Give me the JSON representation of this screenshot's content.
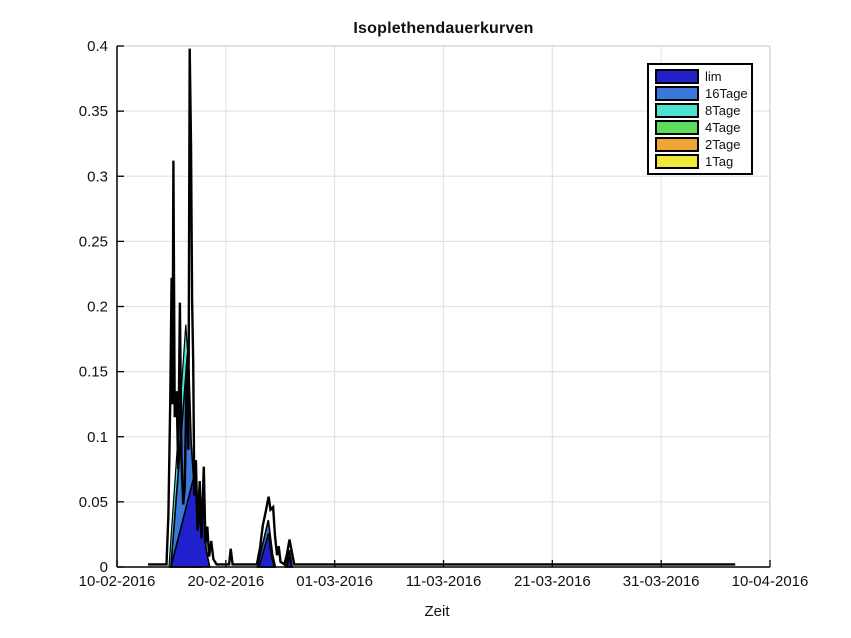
{
  "chart_data": {
    "type": "area",
    "title": "Isoplethendauerkurven",
    "xlabel": "Zeit",
    "x_unit": "days since 10-02-2016",
    "xlim": [
      0,
      60
    ],
    "ylim": [
      0,
      0.4
    ],
    "grid": true,
    "legend_position": "top-right",
    "x_ticks": [
      {
        "day": 0,
        "label": "10-02-2016"
      },
      {
        "day": 10,
        "label": "20-02-2016"
      },
      {
        "day": 20,
        "label": "01-03-2016"
      },
      {
        "day": 30,
        "label": "11-03-2016"
      },
      {
        "day": 40,
        "label": "21-03-2016"
      },
      {
        "day": 50,
        "label": "31-03-2016"
      },
      {
        "day": 60,
        "label": "10-04-2016"
      }
    ],
    "y_ticks": [
      {
        "value": 0,
        "label": "0"
      },
      {
        "value": 0.05,
        "label": "0.05"
      },
      {
        "value": 0.1,
        "label": "0.1"
      },
      {
        "value": 0.15,
        "label": "0.15"
      },
      {
        "value": 0.2,
        "label": "0.2"
      },
      {
        "value": 0.25,
        "label": "0.25"
      },
      {
        "value": 0.3,
        "label": "0.3"
      },
      {
        "value": 0.35,
        "label": "0.35"
      },
      {
        "value": 0.4,
        "label": "0.4"
      }
    ],
    "legend": [
      {
        "label": "lim",
        "color": "#2020cd"
      },
      {
        "label": "16Tage",
        "color": "#3a78dc"
      },
      {
        "label": "8Tage",
        "color": "#4de2d1"
      },
      {
        "label": "4Tage",
        "color": "#5cdc5c"
      },
      {
        "label": "2Tage",
        "color": "#f0a434"
      },
      {
        "label": "1Tag",
        "color": "#eeea3a"
      }
    ],
    "series": [
      {
        "name": "8Tage",
        "color": "#4de2d1",
        "stroke": "#000000",
        "stroke_width": 1.2,
        "filled": true,
        "polygons": [
          [
            [
              4.78,
              0
            ],
            [
              6.32,
              0.186
            ],
            [
              6.5,
              0.164
            ],
            [
              5.0,
              0
            ]
          ]
        ]
      },
      {
        "name": "16Tage",
        "color": "#3a78dc",
        "stroke": "#000000",
        "stroke_width": 1.6,
        "filled": true,
        "polygons": [
          [
            [
              4.95,
              0
            ],
            [
              6.48,
              0.164
            ],
            [
              6.62,
              0.15
            ],
            [
              6.82,
              0.095
            ],
            [
              7.02,
              0.07
            ],
            [
              7.28,
              0.025
            ],
            [
              7.52,
              0
            ]
          ],
          [
            [
              7.5,
              0
            ],
            [
              7.64,
              0.05
            ],
            [
              7.8,
              0
            ]
          ],
          [
            [
              12.9,
              0
            ],
            [
              13.9,
              0.036
            ],
            [
              14.3,
              0.01
            ],
            [
              14.55,
              0
            ]
          ],
          [
            [
              15.5,
              0
            ],
            [
              15.85,
              0.013
            ],
            [
              16.1,
              0
            ]
          ]
        ]
      },
      {
        "name": "lim",
        "color": "#2020cd",
        "stroke": "#000000",
        "stroke_width": 1.6,
        "filled": true,
        "polygons": [
          [
            [
              4.95,
              0
            ],
            [
              7.15,
              0.072
            ],
            [
              7.42,
              0.028
            ],
            [
              7.66,
              0.04
            ],
            [
              7.98,
              0.05
            ],
            [
              8.2,
              0.013
            ],
            [
              8.52,
              0
            ]
          ],
          [
            [
              13.05,
              0
            ],
            [
              13.93,
              0.026
            ],
            [
              14.2,
              0.008
            ],
            [
              14.45,
              0
            ]
          ],
          [
            [
              15.6,
              0
            ],
            [
              15.85,
              0.008
            ],
            [
              16.05,
              0
            ]
          ]
        ]
      },
      {
        "name": "envelope",
        "color": "none",
        "stroke": "#000000",
        "stroke_width": 2.4,
        "filled": false,
        "polygons": [
          [
            [
              2.85,
              0.002
            ],
            [
              4.55,
              0.002
            ],
            [
              4.72,
              0.04
            ],
            [
              4.9,
              0.13
            ],
            [
              5.02,
              0.222
            ],
            [
              5.1,
              0.125
            ],
            [
              5.18,
              0.312
            ],
            [
              5.3,
              0.115
            ],
            [
              5.48,
              0.135
            ],
            [
              5.62,
              0.075
            ],
            [
              5.78,
              0.203
            ],
            [
              5.92,
              0.085
            ],
            [
              6.08,
              0.048
            ],
            [
              6.22,
              0.06
            ],
            [
              6.42,
              0.155
            ],
            [
              6.56,
              0.09
            ],
            [
              6.68,
              0.398
            ],
            [
              6.8,
              0.325
            ],
            [
              6.9,
              0.205
            ],
            [
              7.0,
              0.158
            ],
            [
              7.1,
              0.055
            ],
            [
              7.25,
              0.082
            ],
            [
              7.4,
              0.028
            ],
            [
              7.6,
              0.066
            ],
            [
              7.76,
              0.022
            ],
            [
              7.98,
              0.077
            ],
            [
              8.12,
              0.018
            ],
            [
              8.3,
              0.031
            ],
            [
              8.46,
              0.008
            ],
            [
              8.66,
              0.02
            ],
            [
              8.86,
              0.006
            ],
            [
              9.15,
              0.002
            ],
            [
              10.3,
              0.002
            ],
            [
              10.45,
              0.014
            ],
            [
              10.62,
              0.002
            ],
            [
              12.85,
              0.002
            ],
            [
              13.15,
              0.015
            ],
            [
              13.4,
              0.032
            ],
            [
              13.65,
              0.042
            ],
            [
              13.93,
              0.054
            ],
            [
              14.1,
              0.044
            ],
            [
              14.34,
              0.046
            ],
            [
              14.52,
              0.024
            ],
            [
              14.7,
              0.009
            ],
            [
              14.86,
              0.016
            ],
            [
              15.02,
              0.004
            ],
            [
              15.38,
              0.002
            ],
            [
              15.62,
              0.01
            ],
            [
              15.85,
              0.021
            ],
            [
              16.08,
              0.011
            ],
            [
              16.28,
              0.002
            ],
            [
              56.8,
              0.002
            ]
          ]
        ]
      }
    ],
    "colors": {
      "grid": "#dfe5e5",
      "box_light": "#c9d3d3",
      "axis": "#000000",
      "background": "#ffffff"
    }
  }
}
